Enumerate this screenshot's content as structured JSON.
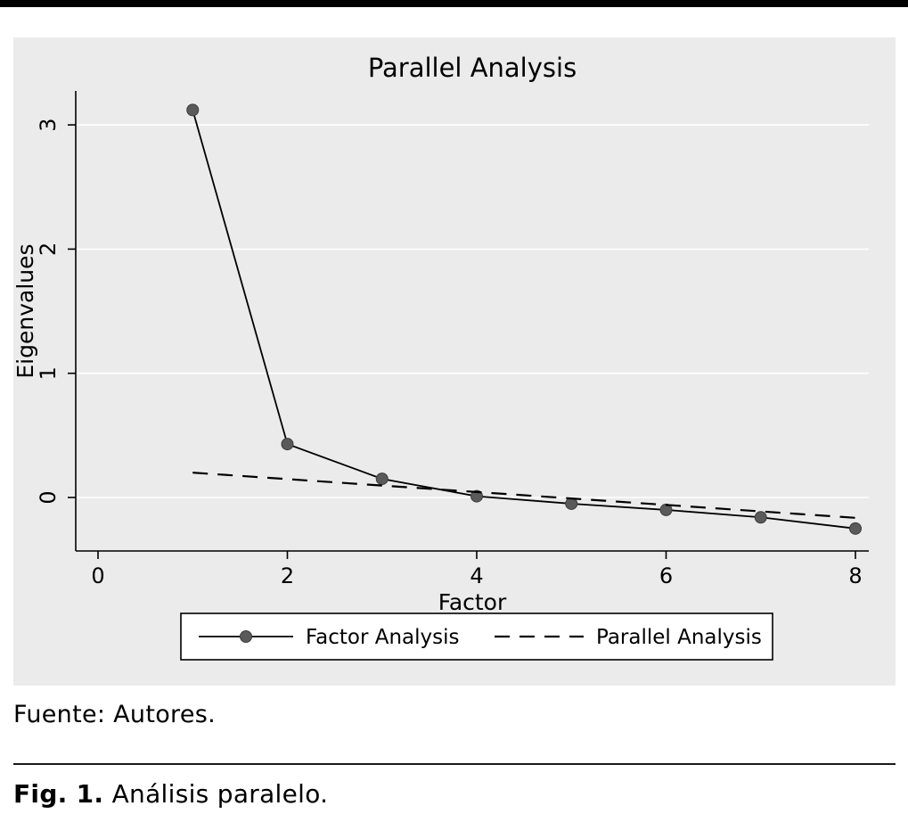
{
  "page": {
    "fuente": "Fuente: Autores.",
    "caption_label": "Fig. 1.",
    "caption_text": " Análisis paralelo."
  },
  "chart_data": {
    "type": "line",
    "title": "Parallel Analysis",
    "xlabel": "Factor",
    "ylabel": "Eigenvalues",
    "x": [
      1,
      2,
      3,
      4,
      5,
      6,
      7,
      8
    ],
    "xticks": [
      0,
      2,
      4,
      6,
      8
    ],
    "yticks": [
      0,
      1,
      2,
      3
    ],
    "xlim": [
      0,
      8.2
    ],
    "ylim": [
      -0.45,
      3.3
    ],
    "grid": "horizontal-white-lines",
    "panel_bg": "#ebebeb",
    "legend_position": "bottom",
    "series": [
      {
        "name": "Factor Analysis",
        "style": "solid",
        "marker": "circle",
        "color": "#000000",
        "marker_color": "#5a5a5a",
        "values": [
          3.12,
          0.43,
          0.15,
          0.01,
          -0.05,
          -0.1,
          -0.16,
          -0.25
        ]
      },
      {
        "name": "Parallel Analysis",
        "style": "dashed",
        "color": "#000000",
        "values": [
          0.2,
          0.148,
          0.096,
          0.044,
          -0.008,
          -0.06,
          -0.112,
          -0.164
        ]
      }
    ]
  }
}
